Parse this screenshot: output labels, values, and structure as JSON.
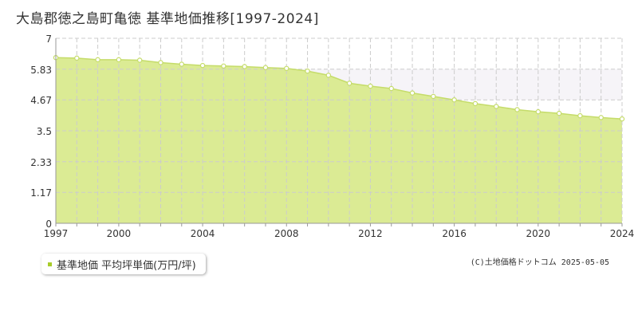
{
  "title": "大島郡徳之島町亀徳 基準地価推移[1997-2024]",
  "legend": {
    "label": "基準地価 平均坪単価(万円/坪)"
  },
  "credit": "(C)土地価格ドットコム 2025-05-05",
  "colors": {
    "area_fill": "#dbeb94",
    "line": "#c5dc6a",
    "marker_fill": "#ffffff",
    "marker_stroke": "#c5dc6a",
    "grid": "#cccccc",
    "axis": "#999999",
    "band": "#f6f4f8",
    "legend_swatch": "#a8cc2a"
  },
  "chart_data": {
    "type": "area",
    "title": "大島郡徳之島町亀徳 基準地価推移[1997-2024]",
    "xlabel": "",
    "ylabel": "",
    "xlim": [
      1997,
      2024
    ],
    "ylim": [
      0,
      7
    ],
    "y_ticks": [
      "0",
      "1.17",
      "2.33",
      "3.5",
      "4.67",
      "5.83",
      "7"
    ],
    "x_ticks": [
      "1997",
      "2000",
      "2004",
      "2008",
      "2012",
      "2016",
      "2020",
      "2024"
    ],
    "grid": true,
    "legend_position": "bottom-left",
    "series": [
      {
        "name": "基準地価 平均坪単価(万円/坪)",
        "x": [
          1997,
          1998,
          1999,
          2000,
          2001,
          2002,
          2003,
          2004,
          2005,
          2006,
          2007,
          2008,
          2009,
          2010,
          2011,
          2012,
          2013,
          2014,
          2015,
          2016,
          2017,
          2018,
          2019,
          2020,
          2021,
          2022,
          2023,
          2024
        ],
        "values": [
          6.27,
          6.25,
          6.19,
          6.19,
          6.17,
          6.08,
          6.02,
          5.97,
          5.95,
          5.93,
          5.89,
          5.86,
          5.76,
          5.6,
          5.3,
          5.19,
          5.1,
          4.93,
          4.8,
          4.67,
          4.53,
          4.42,
          4.3,
          4.22,
          4.16,
          4.07,
          4.0,
          3.95
        ]
      }
    ]
  }
}
